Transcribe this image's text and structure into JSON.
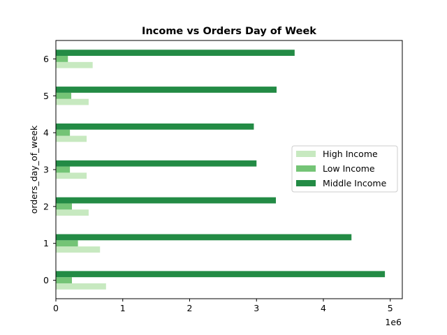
{
  "chart_data": {
    "type": "bar",
    "orientation": "horizontal",
    "title": "Income vs Orders Day of Week",
    "xlabel": "",
    "ylabel": "orders_day_of_week",
    "x_offset_text": "1e6",
    "xlim": [
      0,
      5180000
    ],
    "xticks": [
      0,
      1,
      2,
      3,
      4,
      5
    ],
    "x_tick_scale": 1000000,
    "categories": [
      "0",
      "1",
      "2",
      "3",
      "4",
      "5",
      "6"
    ],
    "series": [
      {
        "name": "High Income",
        "color": "#c7e9c0",
        "values": [
          750000,
          660000,
          490000,
          460000,
          460000,
          490000,
          550000
        ]
      },
      {
        "name": "Low Income",
        "color": "#74c476",
        "values": [
          240000,
          330000,
          240000,
          210000,
          210000,
          230000,
          180000
        ]
      },
      {
        "name": "Middle Income",
        "color": "#238b45",
        "values": [
          4920000,
          4420000,
          3290000,
          3000000,
          2960000,
          3300000,
          3570000
        ]
      }
    ],
    "legend_position": "center-right",
    "grid": false
  }
}
